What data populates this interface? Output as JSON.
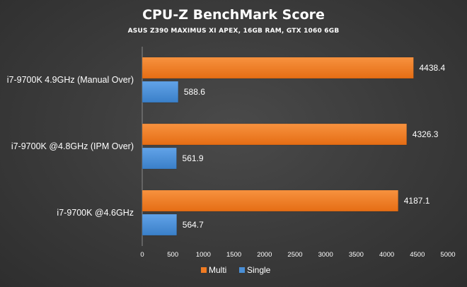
{
  "chart_data": {
    "type": "bar",
    "orientation": "horizontal",
    "title": "CPU-Z BenchMark Score",
    "subtitle": "ASUS Z390 MAXIMUS XI APEX, 16GB RAM, GTX 1060 6GB",
    "categories": [
      "i7-9700K 4.9GHz (Manual Over)",
      "i7-9700K @4.8GHz (IPM Over)",
      "i7-9700K @4.6GHz"
    ],
    "series": [
      {
        "name": "Multi",
        "color": "#f07b22",
        "values": [
          4438.4,
          4326.3,
          4187.1
        ]
      },
      {
        "name": "Single",
        "color": "#4a8fd6",
        "values": [
          588.6,
          561.9,
          564.7
        ]
      }
    ],
    "xlim": [
      0,
      5000
    ],
    "x_ticks": [
      0,
      500,
      1000,
      1500,
      2000,
      2500,
      3000,
      3500,
      4000,
      4500,
      5000
    ],
    "grid": false,
    "legend_position": "bottom"
  }
}
